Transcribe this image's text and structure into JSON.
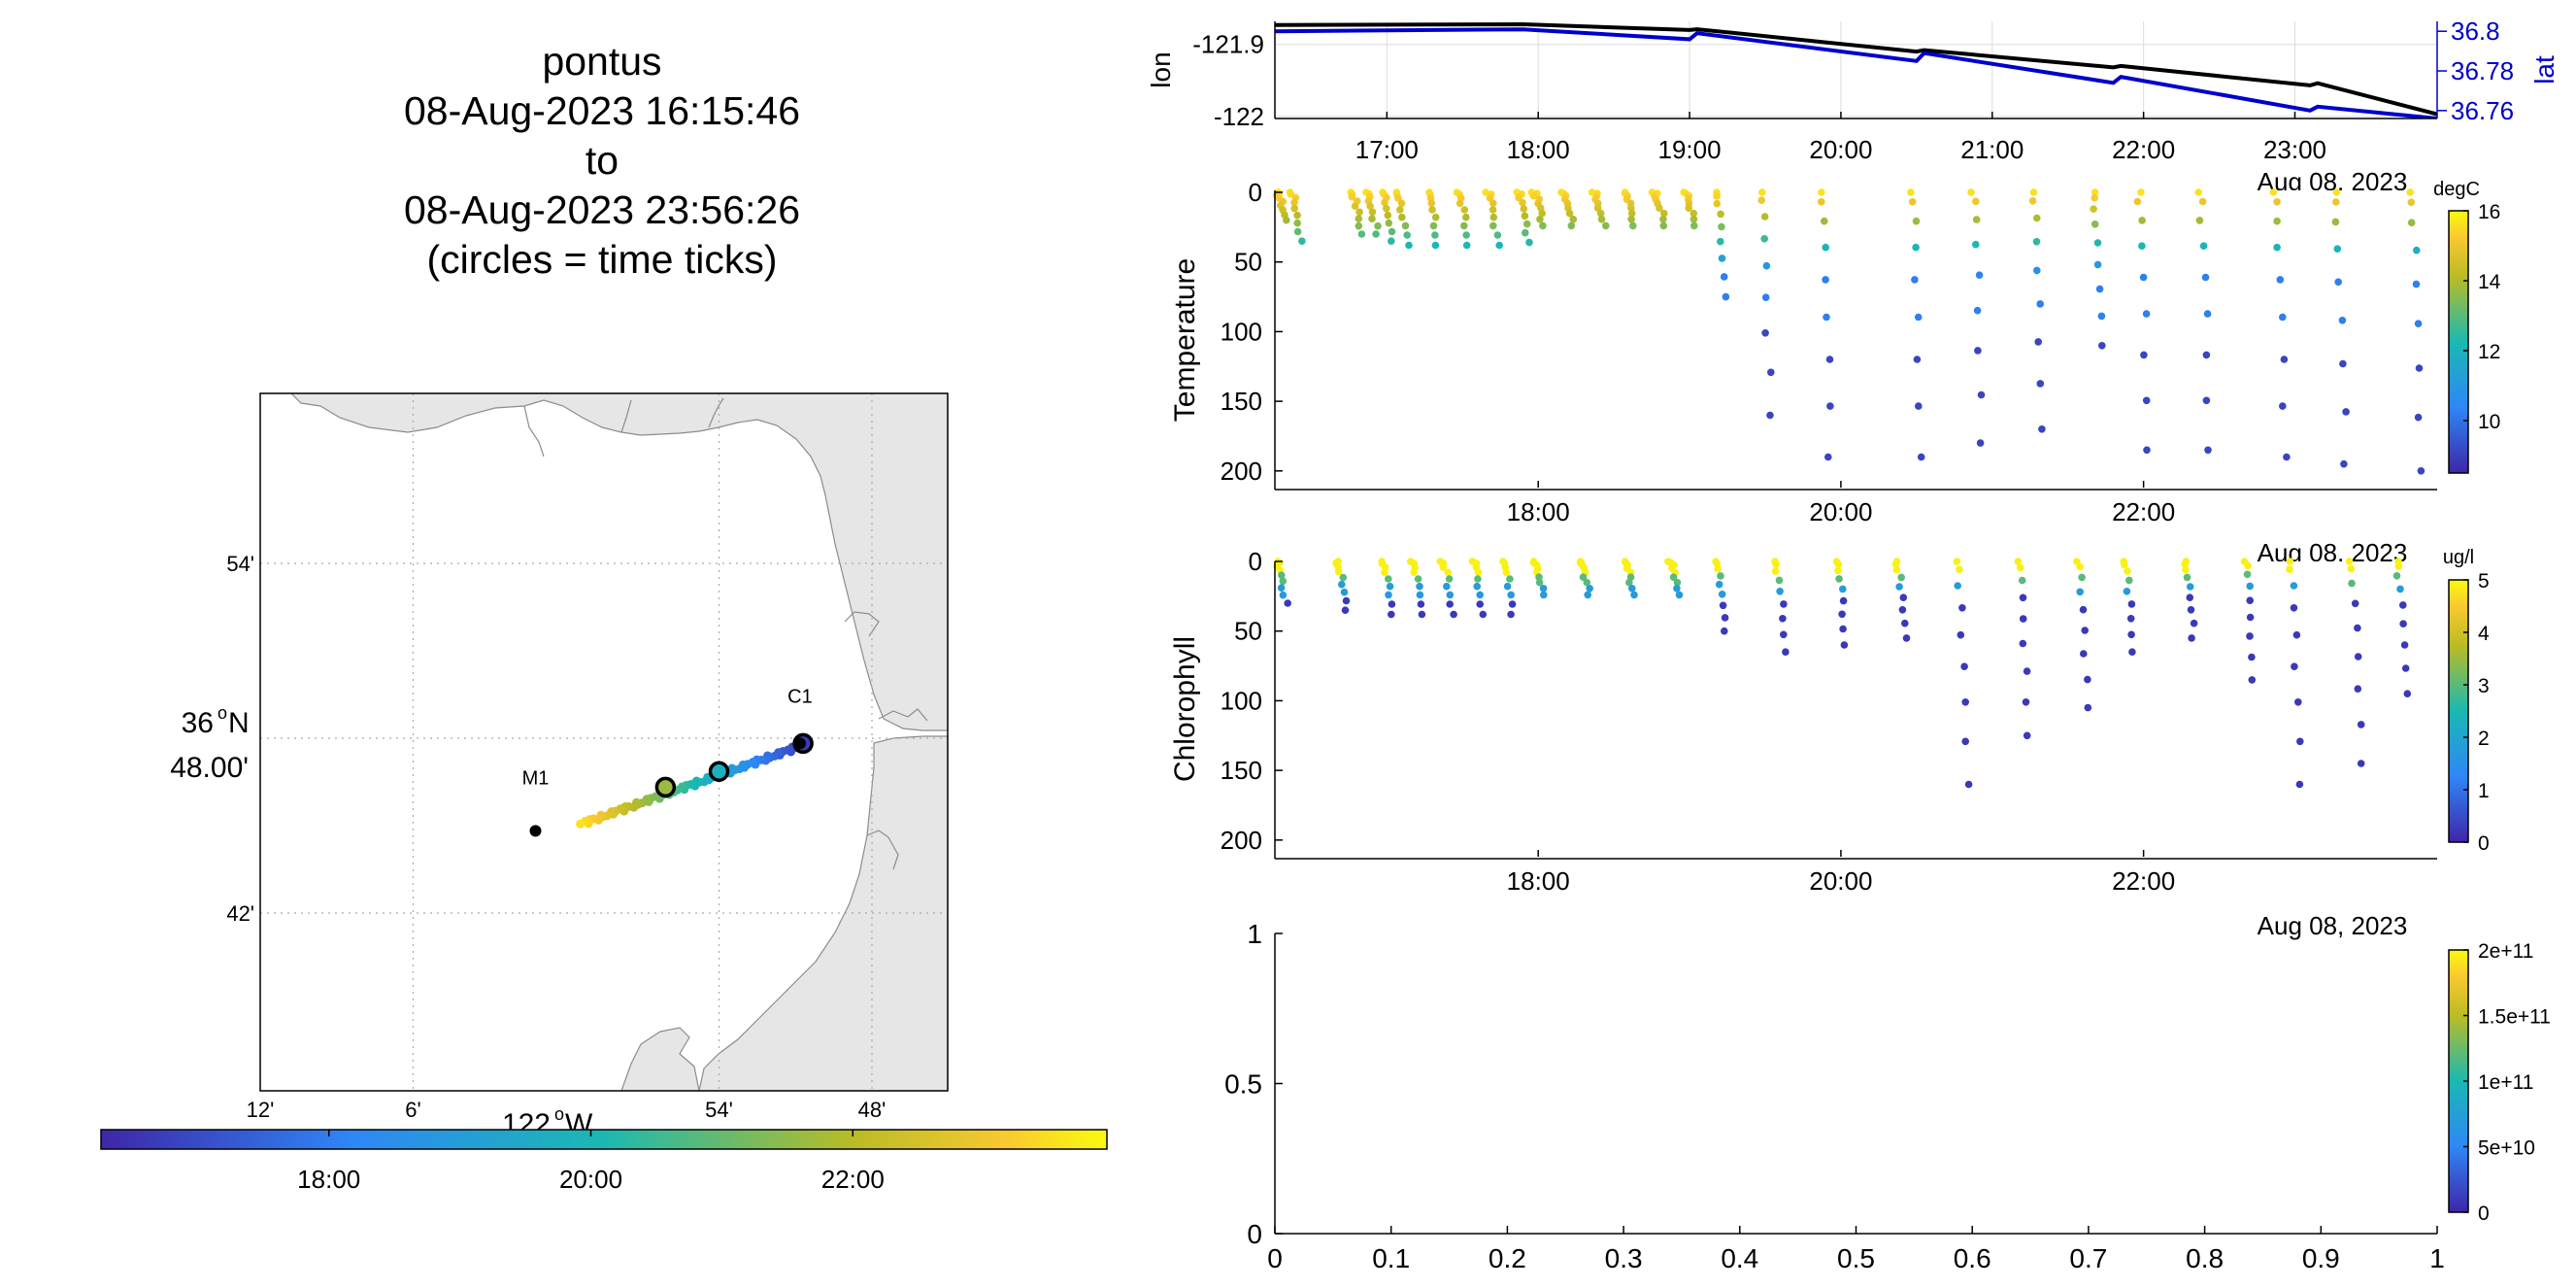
{
  "header": {
    "title_lines": [
      "pontus",
      "08-Aug-2023 16:15:46",
      "to",
      "08-Aug-2023 23:56:26",
      "(circles = time ticks)"
    ]
  },
  "map": {
    "lat_ticks": [
      {
        "label": "54'",
        "lat": 36.9
      },
      {
        "label": "48.00'",
        "lat": 36.8
      },
      {
        "label": "42'",
        "lat": 36.7
      }
    ],
    "lat_degree_label": "36",
    "lat_hemisphere": "N",
    "lon_ticks": [
      {
        "label": "12'",
        "lon": -122.2
      },
      {
        "label": "6'",
        "lon": -122.1
      },
      {
        "label": "54'",
        "lon": -121.9
      },
      {
        "label": "48'",
        "lon": -121.8
      }
    ],
    "lon_degree_label": "122",
    "lon_hemisphere": "W",
    "moorings": [
      {
        "name": "M1",
        "lon": -122.02,
        "lat": 36.747
      },
      {
        "name": "C1",
        "lon": -121.847,
        "lat": 36.797
      }
    ],
    "land_color": "#e6e6e6",
    "track_color_range": [
      "16:15",
      "23:56"
    ]
  },
  "map_colorbar": {
    "tick_labels": [
      "18:00",
      "20:00",
      "22:00"
    ],
    "colormap": "parula"
  },
  "chart_data": [
    {
      "name": "lon/lat panel",
      "type": "line",
      "ylabel_left": "lon",
      "ylabel_right": "lat",
      "y_left_ticks": [
        "-121.9",
        "-122"
      ],
      "y_right_ticks": [
        "36.8",
        "36.78",
        "36.76"
      ],
      "x_ticks": [
        "17:00",
        "18:00",
        "19:00",
        "20:00",
        "21:00",
        "22:00",
        "23:00"
      ],
      "date_label": "Aug 08, 2023",
      "xlim": [
        16.26,
        23.94
      ],
      "ylim_left": [
        -122.003,
        -121.868
      ],
      "ylim_right": [
        36.756,
        36.805
      ],
      "series": [
        {
          "axis": "left",
          "color": "#000000",
          "x": [
            16.26,
            17.9,
            19.0,
            19.05,
            20.5,
            20.55,
            21.8,
            21.85,
            23.1,
            23.15,
            23.94
          ],
          "y": [
            -121.873,
            -121.872,
            -121.88,
            -121.879,
            -121.91,
            -121.908,
            -121.932,
            -121.93,
            -121.957,
            -121.954,
            -121.997
          ]
        },
        {
          "axis": "right",
          "color": "#0000cc",
          "x": [
            16.26,
            17.9,
            19.0,
            19.05,
            20.5,
            20.55,
            21.8,
            21.85,
            23.1,
            23.15,
            23.94
          ],
          "y": [
            36.8,
            36.801,
            36.796,
            36.799,
            36.785,
            36.789,
            36.774,
            36.777,
            36.76,
            36.762,
            36.756
          ]
        }
      ],
      "grid": true
    },
    {
      "name": "temperature panel",
      "type": "scatter",
      "ylabel": "Temperature",
      "y_ticks": [
        "0",
        "50",
        "100",
        "150",
        "200"
      ],
      "ylim": [
        0,
        205
      ],
      "yreversed": true,
      "x_ticks": [
        "18:00",
        "20:00",
        "22:00"
      ],
      "date_label": "Aug 08, 2023",
      "xlim": [
        16.26,
        23.94
      ],
      "colorbar": {
        "unit": "degC",
        "ticks": [
          "16",
          "14",
          "12",
          "10"
        ],
        "range": [
          8.5,
          16.3
        ]
      },
      "profiles": [
        {
          "t": 16.3,
          "max": 20
        },
        {
          "t": 16.4,
          "max": 35
        },
        {
          "t": 16.8,
          "max": 30
        },
        {
          "t": 16.9,
          "max": 30
        },
        {
          "t": 17.0,
          "max": 35
        },
        {
          "t": 17.1,
          "max": 38
        },
        {
          "t": 17.3,
          "max": 38
        },
        {
          "t": 17.5,
          "max": 38
        },
        {
          "t": 17.7,
          "max": 38
        },
        {
          "t": 17.9,
          "max": 36
        },
        {
          "t": 18.0,
          "max": 24
        },
        {
          "t": 18.2,
          "max": 24
        },
        {
          "t": 18.4,
          "max": 24
        },
        {
          "t": 18.6,
          "max": 24
        },
        {
          "t": 18.8,
          "max": 24
        },
        {
          "t": 19.0,
          "max": 24
        },
        {
          "t": 19.2,
          "max": 75
        },
        {
          "t": 19.5,
          "max": 160
        },
        {
          "t": 19.9,
          "max": 190
        },
        {
          "t": 20.5,
          "max": 190
        },
        {
          "t": 20.9,
          "max": 180
        },
        {
          "t": 21.3,
          "max": 170
        },
        {
          "t": 21.7,
          "max": 110
        },
        {
          "t": 22.0,
          "max": 185
        },
        {
          "t": 22.4,
          "max": 185
        },
        {
          "t": 22.9,
          "max": 190
        },
        {
          "t": 23.3,
          "max": 195
        },
        {
          "t": 23.8,
          "max": 200
        }
      ]
    },
    {
      "name": "chlorophyll panel",
      "type": "scatter",
      "ylabel": "Chlorophyll",
      "y_ticks": [
        "0",
        "50",
        "100",
        "150",
        "200"
      ],
      "ylim": [
        0,
        205
      ],
      "yreversed": true,
      "x_ticks": [
        "18:00",
        "20:00",
        "22:00"
      ],
      "date_label": "Aug 08, 2023",
      "xlim": [
        16.26,
        23.94
      ],
      "colorbar": {
        "unit": "ug/l",
        "ticks": [
          "5",
          "4",
          "3",
          "2",
          "1",
          "0"
        ],
        "range": [
          0,
          5
        ]
      },
      "profiles": [
        {
          "t": 16.3,
          "max": 30
        },
        {
          "t": 16.7,
          "max": 35
        },
        {
          "t": 17.0,
          "max": 38
        },
        {
          "t": 17.2,
          "max": 38
        },
        {
          "t": 17.4,
          "max": 38
        },
        {
          "t": 17.6,
          "max": 38
        },
        {
          "t": 17.8,
          "max": 38
        },
        {
          "t": 18.0,
          "max": 24
        },
        {
          "t": 18.3,
          "max": 24
        },
        {
          "t": 18.6,
          "max": 24
        },
        {
          "t": 18.9,
          "max": 24
        },
        {
          "t": 19.2,
          "max": 50
        },
        {
          "t": 19.6,
          "max": 65
        },
        {
          "t": 20.0,
          "max": 60
        },
        {
          "t": 20.4,
          "max": 55
        },
        {
          "t": 20.8,
          "max": 160
        },
        {
          "t": 21.2,
          "max": 125
        },
        {
          "t": 21.6,
          "max": 105
        },
        {
          "t": 21.9,
          "max": 65
        },
        {
          "t": 22.3,
          "max": 55
        },
        {
          "t": 22.7,
          "max": 85
        },
        {
          "t": 23.0,
          "max": 160
        },
        {
          "t": 23.4,
          "max": 145
        },
        {
          "t": 23.7,
          "max": 95
        }
      ]
    },
    {
      "name": "empty panel",
      "type": "scatter",
      "y_ticks": [
        "0",
        "0.5",
        "1"
      ],
      "x_ticks": [
        "0",
        "0.1",
        "0.2",
        "0.3",
        "0.4",
        "0.5",
        "0.6",
        "0.7",
        "0.8",
        "0.9",
        "1"
      ],
      "xlim": [
        0,
        1
      ],
      "ylim": [
        0,
        1
      ],
      "colorbar": {
        "ticks": [
          "2e+11",
          "1.5e+11",
          "1e+11",
          "5e+10",
          "0"
        ],
        "range": [
          0,
          200000000000
        ]
      },
      "series": []
    }
  ]
}
